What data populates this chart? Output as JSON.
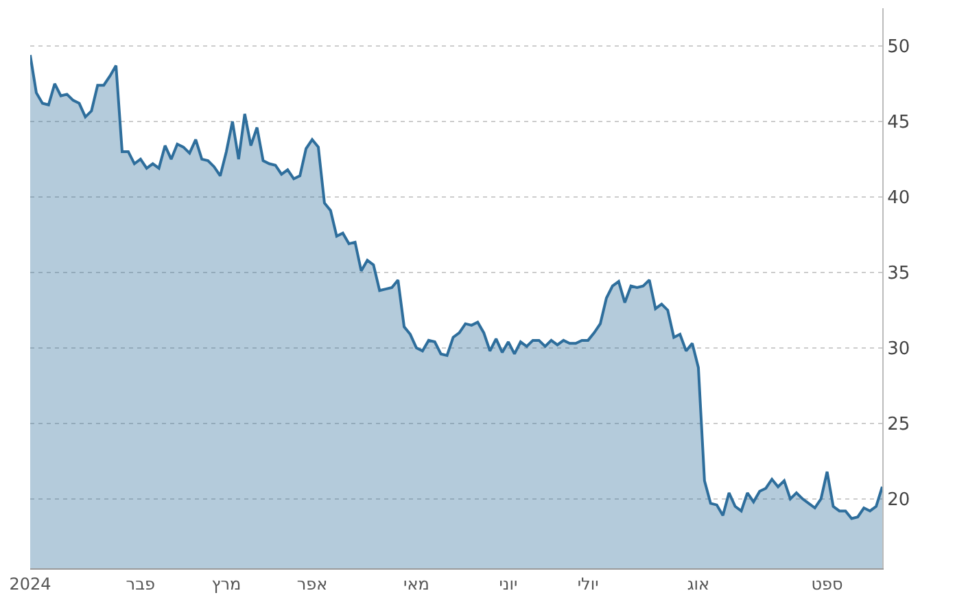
{
  "chart_data": {
    "type": "area",
    "categories": [
      "2024",
      null,
      null,
      null,
      null,
      null,
      null,
      null,
      null,
      null,
      null,
      null,
      null,
      null,
      null,
      null,
      null,
      null,
      "פבר",
      null,
      null,
      null,
      null,
      null,
      null,
      null,
      null,
      null,
      null,
      null,
      null,
      null,
      "מרץ",
      null,
      null,
      null,
      null,
      null,
      null,
      null,
      null,
      null,
      null,
      null,
      null,
      null,
      "אפר",
      null,
      null,
      null,
      null,
      null,
      null,
      null,
      null,
      null,
      null,
      null,
      null,
      null,
      null,
      null,
      null,
      "מאי",
      null,
      null,
      null,
      null,
      null,
      null,
      null,
      null,
      null,
      null,
      null,
      null,
      null,
      null,
      "יוני",
      null,
      null,
      null,
      null,
      null,
      null,
      null,
      null,
      null,
      null,
      null,
      null,
      "יולי",
      null,
      null,
      null,
      null,
      null,
      null,
      null,
      null,
      null,
      null,
      null,
      null,
      null,
      null,
      null,
      null,
      null,
      "אוג",
      null,
      null,
      null,
      null,
      null,
      null,
      null,
      null,
      null,
      null,
      null,
      null,
      null,
      null,
      null,
      null,
      null,
      null,
      null,
      null,
      "ספט",
      null,
      null,
      null,
      null,
      null,
      null,
      null,
      null,
      null
    ],
    "series": [
      {
        "color": "#2e6e9c",
        "values": [
          49.4,
          46.9,
          46.2,
          46.1,
          47.5,
          46.7,
          46.8,
          46.4,
          46.2,
          45.3,
          45.7,
          47.4,
          47.4,
          48.0,
          48.7,
          43.0,
          43.0,
          42.2,
          42.5,
          41.9,
          42.2,
          41.9,
          43.4,
          42.5,
          43.5,
          43.3,
          42.9,
          43.8,
          42.5,
          42.4,
          42.0,
          41.4,
          43.0,
          45.0,
          42.5,
          45.5,
          43.4,
          44.6,
          42.4,
          42.2,
          42.1,
          41.5,
          41.8,
          41.2,
          41.4,
          43.2,
          43.8,
          43.3,
          39.6,
          39.1,
          37.4,
          37.6,
          36.9,
          37.0,
          35.1,
          35.8,
          35.5,
          33.8,
          33.9,
          34.0,
          34.5,
          31.4,
          30.9,
          30.0,
          29.8,
          30.5,
          30.4,
          29.6,
          29.5,
          30.7,
          31.0,
          31.6,
          31.5,
          31.7,
          31.0,
          29.8,
          30.6,
          29.7,
          30.4,
          29.6,
          30.4,
          30.1,
          30.5,
          30.5,
          30.1,
          30.5,
          30.2,
          30.5,
          30.3,
          30.3,
          30.5,
          30.5,
          31.0,
          31.6,
          33.3,
          34.1,
          34.4,
          33.0,
          34.1,
          34.0,
          34.1,
          34.5,
          32.6,
          32.9,
          32.5,
          30.7,
          30.9,
          29.8,
          30.3,
          28.7,
          21.2,
          19.7,
          19.6,
          18.9,
          20.4,
          19.5,
          19.2,
          20.4,
          19.8,
          20.5,
          20.7,
          21.3,
          20.8,
          21.2,
          20.0,
          20.4,
          20.0,
          19.7,
          19.4,
          20.0,
          21.8,
          19.5,
          19.2,
          19.2,
          18.7,
          18.8,
          19.4,
          19.2,
          19.5,
          20.8
        ]
      }
    ],
    "ylim": [
      15.4,
      52.5
    ],
    "yticks": [
      20,
      25,
      30,
      35,
      40,
      45,
      50
    ],
    "grid": "y"
  }
}
